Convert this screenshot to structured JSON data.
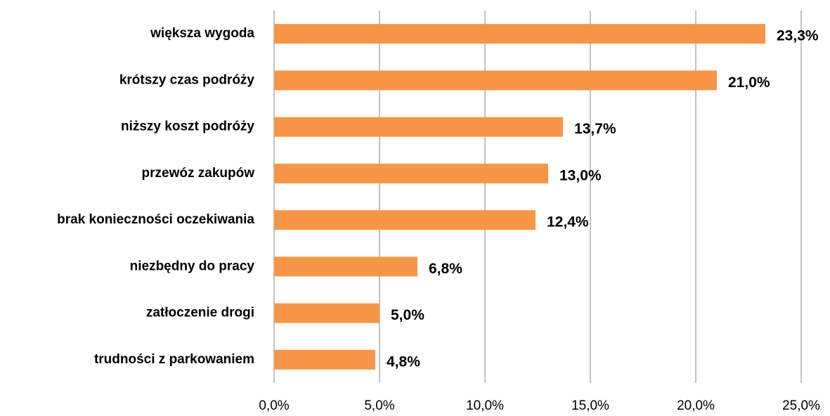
{
  "chart_data": {
    "type": "bar",
    "orientation": "horizontal",
    "categories": [
      "większa wygoda",
      "krótszy czas podróży",
      "niższy koszt podróży",
      "przewóz zakupów",
      "brak konieczności oczekiwania",
      "niezbędny do pracy",
      "zatłoczenie drogi",
      "trudności z parkowaniem"
    ],
    "values": [
      23.3,
      21.0,
      13.7,
      13.0,
      12.4,
      6.8,
      5.0,
      4.8
    ],
    "value_labels": [
      "23,3%",
      "21,0%",
      "13,7%",
      "13,0%",
      "12,4%",
      "6,8%",
      "5,0%",
      "4,8%"
    ],
    "color": "#f79646",
    "xlim": [
      0,
      25
    ],
    "xticks": [
      {
        "value": 0,
        "label": "0,0%"
      },
      {
        "value": 5,
        "label": "5,0%"
      },
      {
        "value": 10,
        "label": "10,0%"
      },
      {
        "value": 15,
        "label": "15,0%"
      },
      {
        "value": 20,
        "label": "20,0%"
      },
      {
        "value": 25,
        "label": "25,0%"
      }
    ],
    "grid": true
  }
}
